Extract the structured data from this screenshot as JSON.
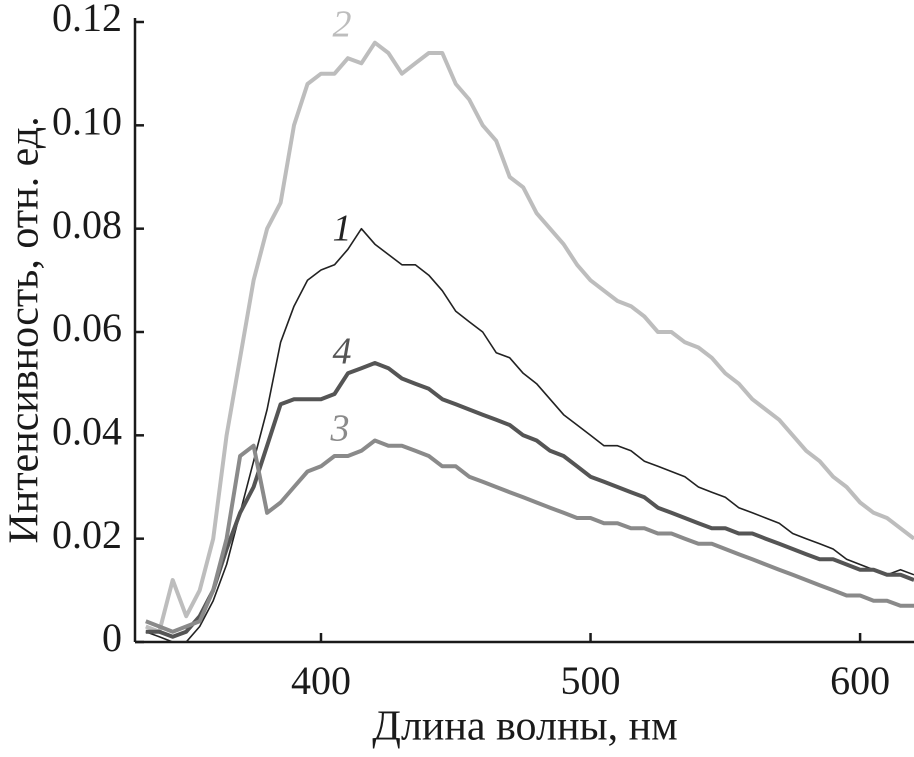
{
  "chart_data": {
    "type": "line",
    "xlabel": "Длина волны, нм",
    "ylabel": "Интенсивность, отн. ед.",
    "x": [
      335,
      340,
      345,
      350,
      355,
      360,
      365,
      370,
      375,
      380,
      385,
      390,
      395,
      400,
      405,
      410,
      415,
      420,
      425,
      430,
      435,
      440,
      445,
      450,
      455,
      460,
      465,
      470,
      475,
      480,
      485,
      490,
      495,
      500,
      505,
      510,
      515,
      520,
      525,
      530,
      535,
      540,
      545,
      550,
      555,
      560,
      565,
      570,
      575,
      580,
      585,
      590,
      595,
      600,
      605,
      610,
      615,
      620
    ],
    "series": [
      {
        "name": "1",
        "color": "#222222",
        "values": [
          0.002,
          0.001,
          0,
          0,
          0.003,
          0.008,
          0.015,
          0.025,
          0.035,
          0.045,
          0.058,
          0.065,
          0.07,
          0.072,
          0.073,
          0.076,
          0.08,
          0.077,
          0.075,
          0.073,
          0.073,
          0.071,
          0.068,
          0.064,
          0.062,
          0.06,
          0.056,
          0.055,
          0.052,
          0.05,
          0.047,
          0.044,
          0.042,
          0.04,
          0.038,
          0.038,
          0.037,
          0.035,
          0.034,
          0.033,
          0.032,
          0.03,
          0.029,
          0.028,
          0.026,
          0.025,
          0.024,
          0.023,
          0.021,
          0.02,
          0.019,
          0.018,
          0.016,
          0.015,
          0.014,
          0.013,
          0.014,
          0.013
        ]
      },
      {
        "name": "2",
        "color": "#bdbdbd",
        "values": [
          0.003,
          0.002,
          0.012,
          0.005,
          0.01,
          0.02,
          0.04,
          0.055,
          0.07,
          0.08,
          0.085,
          0.1,
          0.108,
          0.11,
          0.11,
          0.113,
          0.112,
          0.116,
          0.114,
          0.11,
          0.112,
          0.114,
          0.114,
          0.108,
          0.105,
          0.1,
          0.097,
          0.09,
          0.088,
          0.083,
          0.08,
          0.077,
          0.073,
          0.07,
          0.068,
          0.066,
          0.065,
          0.063,
          0.06,
          0.06,
          0.058,
          0.057,
          0.055,
          0.052,
          0.05,
          0.047,
          0.045,
          0.043,
          0.04,
          0.037,
          0.035,
          0.032,
          0.03,
          0.027,
          0.025,
          0.024,
          0.022,
          0.02
        ]
      },
      {
        "name": "3",
        "color": "#8a8a8a",
        "values": [
          0.004,
          0.003,
          0.002,
          0.003,
          0.004,
          0.01,
          0.02,
          0.036,
          0.038,
          0.025,
          0.027,
          0.03,
          0.033,
          0.034,
          0.036,
          0.036,
          0.037,
          0.039,
          0.038,
          0.038,
          0.037,
          0.036,
          0.034,
          0.034,
          0.032,
          0.031,
          0.03,
          0.029,
          0.028,
          0.027,
          0.026,
          0.025,
          0.024,
          0.024,
          0.023,
          0.023,
          0.022,
          0.022,
          0.021,
          0.021,
          0.02,
          0.019,
          0.019,
          0.018,
          0.017,
          0.016,
          0.015,
          0.014,
          0.013,
          0.012,
          0.011,
          0.01,
          0.009,
          0.009,
          0.008,
          0.008,
          0.007,
          0.007
        ]
      },
      {
        "name": "4",
        "color": "#555555",
        "values": [
          0.002,
          0.002,
          0.001,
          0.002,
          0.005,
          0.01,
          0.018,
          0.025,
          0.03,
          0.038,
          0.046,
          0.047,
          0.047,
          0.047,
          0.048,
          0.052,
          0.053,
          0.054,
          0.053,
          0.051,
          0.05,
          0.049,
          0.047,
          0.046,
          0.045,
          0.044,
          0.043,
          0.042,
          0.04,
          0.039,
          0.037,
          0.036,
          0.034,
          0.032,
          0.031,
          0.03,
          0.029,
          0.028,
          0.026,
          0.025,
          0.024,
          0.023,
          0.022,
          0.022,
          0.021,
          0.021,
          0.02,
          0.019,
          0.018,
          0.017,
          0.016,
          0.016,
          0.015,
          0.014,
          0.014,
          0.013,
          0.013,
          0.012
        ]
      }
    ],
    "xlim": [
      331,
      620
    ],
    "ylim": [
      0,
      0.12
    ],
    "xticks": [
      400,
      500,
      600
    ],
    "yticks": [
      0,
      0.02,
      0.04,
      0.06,
      0.08,
      {
        "value": 0.1,
        "label": "0.10"
      },
      0.12
    ],
    "grid": false
  }
}
